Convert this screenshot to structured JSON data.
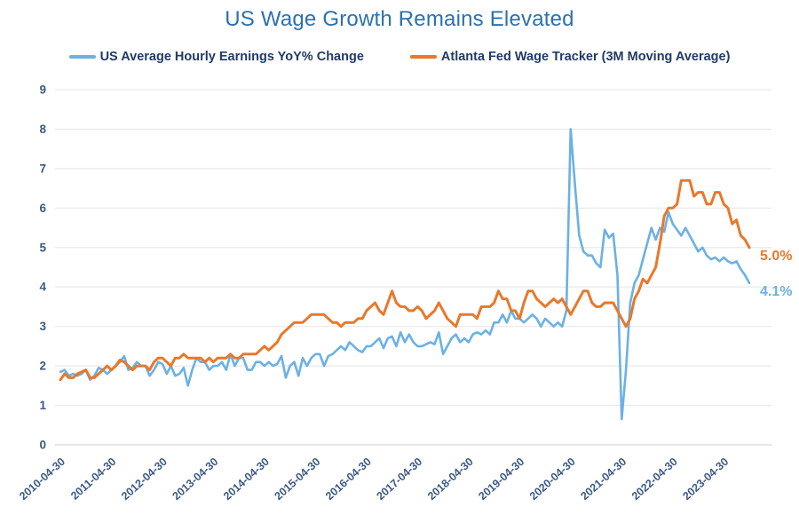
{
  "title": "US Wage Growth Remains Elevated",
  "colors": {
    "title_text": "#2a71b0",
    "axis_tick_text": "#3c5a84",
    "legend_text": "#203b66",
    "gridline": "#e9e9e9",
    "zero_line": "#d6d6d6",
    "blue_series": "#6bb1e4",
    "orange_series": "#e8782a"
  },
  "chart_data": {
    "type": "line",
    "title": "US Wage Growth Remains Elevated",
    "xlabel": "",
    "ylabel": "",
    "ylim": [
      0,
      9
    ],
    "y_ticks": [
      0,
      1,
      2,
      3,
      4,
      5,
      6,
      7,
      8,
      9
    ],
    "grid": "horizontal-only",
    "legend_position": "top-center",
    "x_start": "2010-04",
    "x_frequency": "monthly",
    "x_tick_interval_months": 12,
    "x_tick_labels": [
      "2010-04-30",
      "2011-04-30",
      "2012-04-30",
      "2013-04-30",
      "2014-04-30",
      "2015-04-30",
      "2016-04-30",
      "2017-04-30",
      "2018-04-30",
      "2019-04-30",
      "2020-04-30",
      "2021-04-30",
      "2022-04-30",
      "2023-04-30"
    ],
    "series": [
      {
        "name": "US Average Hourly Earnings YoY% Change",
        "color": "#6bb1e4",
        "end_label": "4.1%",
        "values": [
          1.85,
          1.9,
          1.75,
          1.8,
          1.75,
          1.8,
          1.9,
          1.65,
          1.75,
          1.95,
          1.9,
          1.8,
          1.9,
          2.0,
          2.1,
          2.25,
          1.9,
          1.95,
          2.1,
          2.0,
          2.0,
          1.75,
          1.9,
          2.1,
          2.05,
          1.8,
          2.0,
          1.75,
          1.8,
          1.95,
          1.5,
          1.9,
          2.2,
          2.1,
          2.1,
          1.9,
          2.0,
          2.0,
          2.1,
          1.9,
          2.3,
          2.0,
          2.2,
          2.2,
          1.9,
          1.9,
          2.1,
          2.1,
          2.0,
          2.1,
          2.0,
          2.05,
          2.25,
          1.7,
          2.0,
          2.1,
          1.75,
          2.2,
          2.0,
          2.2,
          2.3,
          2.3,
          2.0,
          2.25,
          2.3,
          2.4,
          2.5,
          2.4,
          2.6,
          2.5,
          2.4,
          2.35,
          2.5,
          2.5,
          2.6,
          2.7,
          2.45,
          2.7,
          2.75,
          2.5,
          2.85,
          2.6,
          2.8,
          2.6,
          2.5,
          2.5,
          2.55,
          2.6,
          2.55,
          2.85,
          2.3,
          2.5,
          2.7,
          2.8,
          2.6,
          2.7,
          2.6,
          2.8,
          2.85,
          2.8,
          2.9,
          2.8,
          3.1,
          3.1,
          3.3,
          3.1,
          3.4,
          3.2,
          3.2,
          3.1,
          3.2,
          3.3,
          3.2,
          3.0,
          3.2,
          3.1,
          3.0,
          3.1,
          3.0,
          3.4,
          8.0,
          6.6,
          5.3,
          4.9,
          4.8,
          4.8,
          4.6,
          4.5,
          5.45,
          5.25,
          5.35,
          4.3,
          0.65,
          1.9,
          3.6,
          4.1,
          4.3,
          4.7,
          5.1,
          5.5,
          5.2,
          5.5,
          5.4,
          5.9,
          5.6,
          5.45,
          5.3,
          5.5,
          5.3,
          5.1,
          4.9,
          5.0,
          4.8,
          4.7,
          4.75,
          4.65,
          4.75,
          4.65,
          4.6,
          4.65,
          4.45,
          4.3,
          4.1
        ]
      },
      {
        "name": "Atlanta Fed Wage Tracker (3M Moving Average)",
        "color": "#e8782a",
        "end_label": "5.0%",
        "values": [
          1.65,
          1.8,
          1.7,
          1.7,
          1.8,
          1.85,
          1.9,
          1.7,
          1.7,
          1.8,
          1.9,
          2.0,
          1.9,
          2.0,
          2.15,
          2.1,
          2.0,
          1.9,
          2.0,
          2.0,
          2.0,
          1.9,
          2.1,
          2.2,
          2.2,
          2.1,
          2.0,
          2.2,
          2.2,
          2.3,
          2.2,
          2.2,
          2.2,
          2.2,
          2.1,
          2.2,
          2.1,
          2.2,
          2.2,
          2.2,
          2.3,
          2.2,
          2.2,
          2.3,
          2.3,
          2.3,
          2.3,
          2.4,
          2.5,
          2.4,
          2.5,
          2.6,
          2.8,
          2.9,
          3.0,
          3.1,
          3.1,
          3.1,
          3.2,
          3.3,
          3.3,
          3.3,
          3.3,
          3.2,
          3.1,
          3.1,
          3.0,
          3.1,
          3.1,
          3.1,
          3.2,
          3.2,
          3.4,
          3.5,
          3.6,
          3.4,
          3.3,
          3.6,
          3.9,
          3.6,
          3.5,
          3.5,
          3.4,
          3.4,
          3.5,
          3.4,
          3.2,
          3.3,
          3.4,
          3.6,
          3.4,
          3.2,
          3.1,
          3.0,
          3.3,
          3.3,
          3.3,
          3.3,
          3.2,
          3.5,
          3.5,
          3.5,
          3.6,
          3.9,
          3.7,
          3.7,
          3.4,
          3.4,
          3.2,
          3.6,
          3.9,
          3.9,
          3.7,
          3.6,
          3.5,
          3.6,
          3.7,
          3.6,
          3.7,
          3.5,
          3.3,
          3.5,
          3.7,
          3.9,
          3.9,
          3.6,
          3.5,
          3.5,
          3.6,
          3.6,
          3.6,
          3.4,
          3.2,
          3.0,
          3.2,
          3.7,
          3.9,
          4.2,
          4.1,
          4.3,
          4.5,
          5.1,
          5.8,
          6.0,
          6.0,
          6.1,
          6.7,
          6.7,
          6.7,
          6.3,
          6.4,
          6.4,
          6.1,
          6.1,
          6.4,
          6.4,
          6.1,
          6.0,
          5.6,
          5.7,
          5.3,
          5.2,
          5.0
        ]
      }
    ]
  }
}
